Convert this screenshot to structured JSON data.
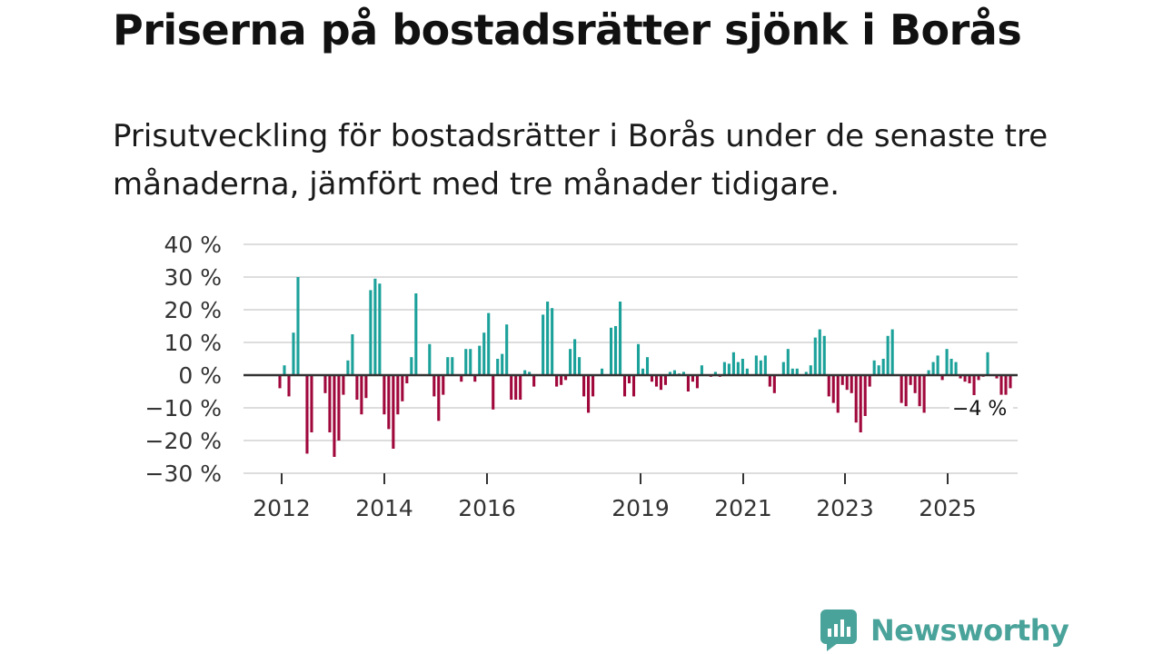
{
  "header": {
    "title": "Priserna på bostadsrätter sjönk i Borås",
    "subtitle": "Prisutveckling för bostadsrätter i Borås under de senaste tre månaderna, jämfört med tre månader tidigare."
  },
  "brand": {
    "name": "Newsworthy",
    "icon": "newsworthy-logo-icon",
    "color": "#4aa39a"
  },
  "chart_data": {
    "type": "bar",
    "title": "Priserna på bostadsrätter sjönk i Borås",
    "xlabel": "",
    "ylabel": "",
    "unit": "%",
    "ylim": [
      -30,
      40
    ],
    "yticks": [
      40,
      30,
      20,
      10,
      0,
      -10,
      -20,
      -30
    ],
    "ytick_labels": [
      "40 %",
      "30 %",
      "20 %",
      "10 %",
      "0 %",
      "−10 %",
      "−20 %",
      "−30 %"
    ],
    "xticks": [
      2012,
      2014,
      2016,
      2019,
      2021,
      2023,
      2025
    ],
    "x_start": 2011.97,
    "x_end": 2026.13,
    "grid": true,
    "positive_color": "#1ba19a",
    "negative_color": "#a0083c",
    "end_label": "−4 %",
    "values": [
      -4,
      3,
      -6.5,
      13,
      30,
      0,
      -24,
      -17.5,
      0,
      0,
      -5.5,
      -17.5,
      -25,
      -20,
      -6,
      4.5,
      12.5,
      -7.5,
      -12,
      -7,
      26,
      29.5,
      28,
      -12,
      -16.5,
      -22.5,
      -12,
      -8,
      -2.5,
      5.5,
      25,
      0,
      0,
      9.5,
      -6.5,
      -14,
      -6,
      5.5,
      5.5,
      0,
      -2,
      8,
      8,
      -2,
      9,
      13,
      19,
      -10.5,
      5,
      6.5,
      15.5,
      -7.5,
      -7.5,
      -7.5,
      1.5,
      1,
      -3.5,
      0,
      18.5,
      22.5,
      20.5,
      -3.5,
      -3,
      -1.5,
      8,
      11,
      5.5,
      -6.5,
      -11.5,
      -6.5,
      0,
      2,
      0,
      14.5,
      15,
      22.5,
      -6.5,
      -2.5,
      -6.5,
      9.5,
      2,
      5.5,
      -2,
      -3.5,
      -4.5,
      -3,
      1,
      1.5,
      0.5,
      1,
      -5,
      -2,
      -4,
      3,
      0,
      -0.5,
      1,
      -0.5,
      4,
      3.5,
      7,
      4,
      5,
      2,
      0,
      6,
      4.5,
      6,
      -3.5,
      -5.5,
      0,
      4,
      8,
      2,
      2,
      0,
      1,
      3,
      11.5,
      14,
      12,
      -6.5,
      -8.5,
      -11.5,
      -3,
      -4.5,
      -5.5,
      -14.5,
      -17.5,
      -12.5,
      -3.5,
      4.5,
      3,
      5,
      12,
      14,
      0,
      -8.5,
      -9.5,
      -3,
      -5.5,
      -9.5,
      -11.5,
      1.5,
      4,
      6,
      -1.5,
      8,
      5,
      4,
      -1,
      -2,
      -2.5,
      -6.5,
      -1.5,
      -0.5,
      7,
      0,
      -1,
      -6,
      -6,
      -4
    ]
  }
}
